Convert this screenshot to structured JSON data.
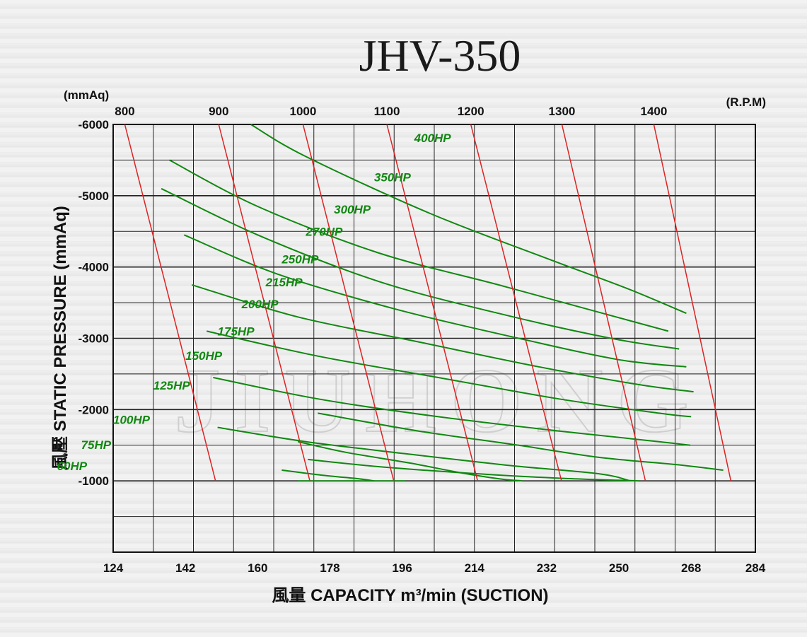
{
  "chart_data": {
    "type": "line",
    "title": "JHV-350",
    "xlabel": "風量  CAPACITY  m³/min (SUCTION)",
    "ylabel": "風壓  STATIC  PRESSURE  (mmAq)",
    "y_unit_top": "(mmAq)",
    "rpm_unit": "(R.P.M)",
    "xlim": [
      124,
      284
    ],
    "ylim": [
      0,
      -6000
    ],
    "x_ticks": [
      "124",
      "142",
      "160",
      "178",
      "196",
      "214",
      "232",
      "250",
      "268",
      "284"
    ],
    "y_ticks": [
      "-6000",
      "-5000",
      "-4000",
      "-3000",
      "-2000",
      "-1000"
    ],
    "grid": true,
    "watermark": "JIUHONG",
    "rpm_series": [
      {
        "name": "800",
        "label": "800",
        "points": [
          [
            126.9,
            -6000
          ],
          [
            149.5,
            -1000
          ]
        ]
      },
      {
        "name": "900",
        "label": "900",
        "points": [
          [
            150.3,
            -6000
          ],
          [
            173.0,
            -1000
          ]
        ]
      },
      {
        "name": "1000",
        "label": "1000",
        "points": [
          [
            171.3,
            -6000
          ],
          [
            193.9,
            -1000
          ]
        ]
      },
      {
        "name": "1100",
        "label": "1100",
        "points": [
          [
            192.2,
            -6000
          ],
          [
            214.8,
            -1000
          ]
        ]
      },
      {
        "name": "1200",
        "label": "1200",
        "points": [
          [
            213.1,
            -6000
          ],
          [
            235.7,
            -1000
          ]
        ]
      },
      {
        "name": "1300",
        "label": "1300",
        "points": [
          [
            235.8,
            -6000
          ],
          [
            256.6,
            -1000
          ]
        ]
      },
      {
        "name": "1400",
        "label": "1400",
        "points": [
          [
            258.7,
            -6000
          ],
          [
            277.9,
            -1000
          ]
        ]
      }
    ],
    "hp_series": [
      {
        "name": "400HP",
        "label": "400HP",
        "points": [
          [
            158.3,
            -6000
          ],
          [
            172.0,
            -5550
          ],
          [
            203.0,
            -4750
          ],
          [
            233.0,
            -4100
          ],
          [
            252.0,
            -3700
          ],
          [
            266.8,
            -3350
          ]
        ]
      },
      {
        "name": "350HP",
        "label": "350HP",
        "points": [
          [
            138.0,
            -5500
          ],
          [
            160.0,
            -4850
          ],
          [
            190.0,
            -4200
          ],
          [
            220.0,
            -3750
          ],
          [
            246.0,
            -3350
          ],
          [
            262.3,
            -3100
          ]
        ]
      },
      {
        "name": "300HP",
        "label": "300HP",
        "points": [
          [
            136.0,
            -5100
          ],
          [
            160.0,
            -4450
          ],
          [
            190.0,
            -3800
          ],
          [
            220.0,
            -3350
          ],
          [
            248.0,
            -3000
          ],
          [
            265.0,
            -2850
          ]
        ]
      },
      {
        "name": "270HP",
        "label": "270HP",
        "points": [
          [
            141.7,
            -4450
          ],
          [
            165.0,
            -3900
          ],
          [
            195.0,
            -3400
          ],
          [
            225.0,
            -3000
          ],
          [
            250.0,
            -2700
          ],
          [
            266.8,
            -2600
          ]
        ]
      },
      {
        "name": "250HP",
        "label": "250HP",
        "points": [
          [
            143.6,
            -3750
          ],
          [
            170.0,
            -3300
          ],
          [
            200.0,
            -2950
          ],
          [
            230.0,
            -2600
          ],
          [
            255.0,
            -2350
          ],
          [
            268.6,
            -2250
          ]
        ]
      },
      {
        "name": "215HP",
        "label": "215HP",
        "points": [
          [
            147.3,
            -3100
          ],
          [
            175.0,
            -2750
          ],
          [
            205.0,
            -2450
          ],
          [
            235.0,
            -2150
          ],
          [
            260.0,
            -1950
          ],
          [
            268.0,
            -1900
          ]
        ]
      },
      {
        "name": "200HP",
        "label": "200HP",
        "points": [
          [
            148.9,
            -2450
          ],
          [
            175.0,
            -2150
          ],
          [
            205.0,
            -1900
          ],
          [
            235.0,
            -1700
          ],
          [
            260.0,
            -1550
          ],
          [
            267.8,
            -1500
          ]
        ]
      },
      {
        "name": "175HP",
        "label": "175HP",
        "points": [
          [
            150.0,
            -1750
          ],
          [
            172.0,
            -1550
          ],
          [
            197.0,
            -1380
          ],
          [
            222.0,
            -1220
          ],
          [
            245.0,
            -1100
          ],
          [
            252.8,
            -1000
          ]
        ]
      },
      {
        "name": "150HP",
        "label": "150HP",
        "points": [
          [
            175.0,
            -1950
          ],
          [
            200.0,
            -1700
          ],
          [
            225.0,
            -1500
          ],
          [
            245.0,
            -1330
          ],
          [
            264.0,
            -1230
          ],
          [
            276.0,
            -1150
          ]
        ]
      },
      {
        "name": "125HP",
        "label": "125HP",
        "points": [
          [
            172.5,
            -1300
          ],
          [
            190.0,
            -1200
          ],
          [
            212.0,
            -1110
          ],
          [
            234.0,
            -1040
          ],
          [
            255.0,
            -1000
          ]
        ]
      },
      {
        "name": "100HP",
        "label": "100HP",
        "points": [
          [
            170.0,
            -1550
          ],
          [
            182.0,
            -1400
          ],
          [
            198.0,
            -1250
          ],
          [
            210.0,
            -1120
          ],
          [
            220.0,
            -1030
          ],
          [
            226.0,
            -1000
          ]
        ]
      },
      {
        "name": "75HP",
        "label": "75HP",
        "points": [
          [
            166.0,
            -1150
          ],
          [
            176.0,
            -1080
          ],
          [
            185.0,
            -1030
          ],
          [
            189.0,
            -1000
          ]
        ]
      },
      {
        "name": "60HP",
        "label": "60HP",
        "points": [
          [
            170.0,
            -1000
          ],
          [
            182.0,
            -1000
          ],
          [
            196.8,
            -1000
          ]
        ]
      }
    ],
    "colors": {
      "hp_line": "#118811",
      "rpm_line": "#dd2222",
      "grid": "#222222"
    }
  }
}
